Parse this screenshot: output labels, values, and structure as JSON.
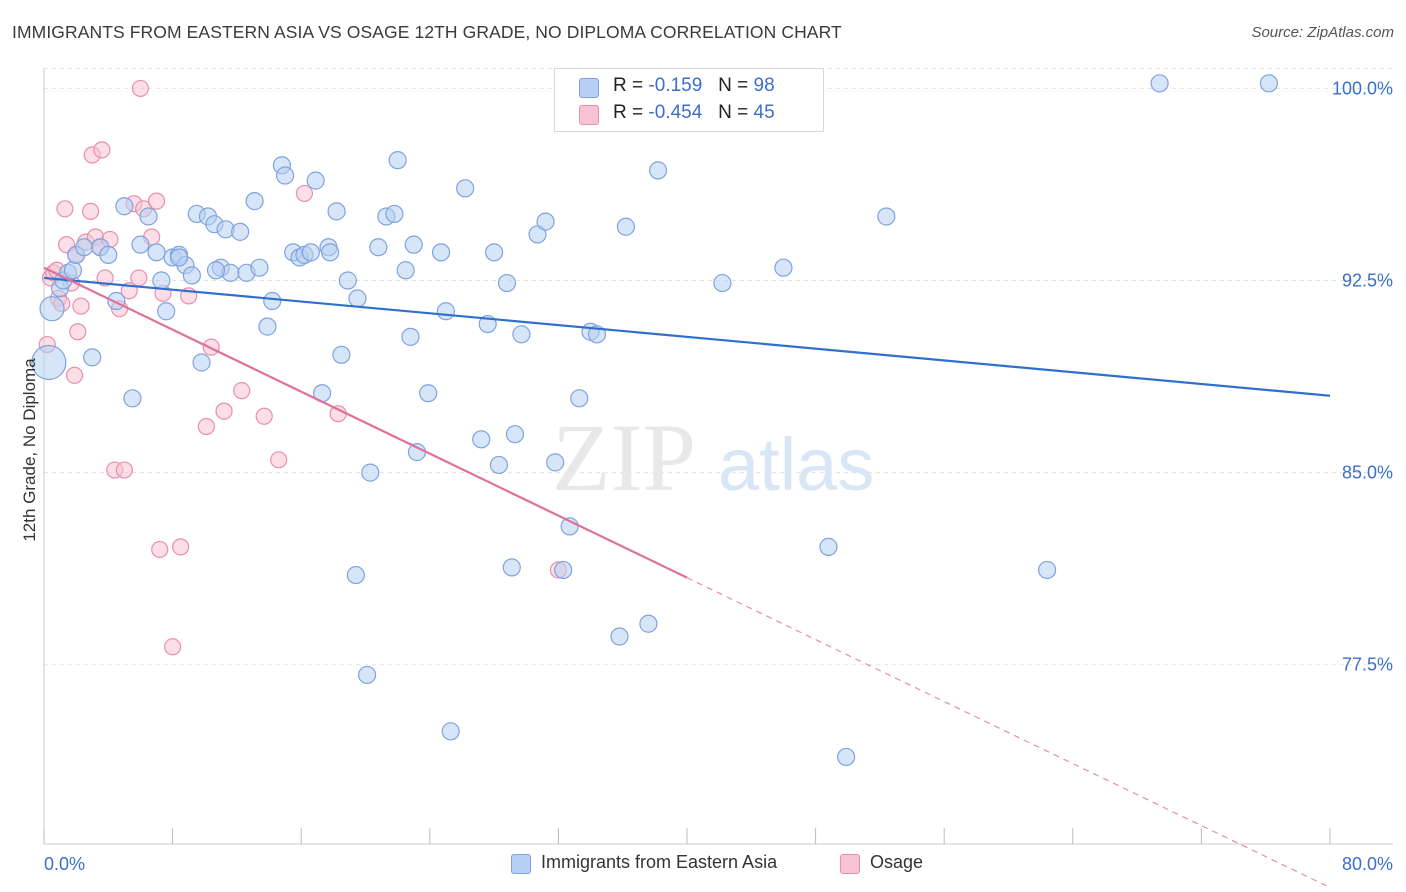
{
  "title": "IMMIGRANTS FROM EASTERN ASIA VS OSAGE 12TH GRADE, NO DIPLOMA CORRELATION CHART",
  "source": "Source: ZipAtlas.com",
  "watermark": {
    "zip": "ZIP",
    "atlas": "atlas"
  },
  "legend": {
    "blue": {
      "r_label": "R =",
      "r_value": "-0.159",
      "n_label": "N =",
      "n_value": "98"
    },
    "pink": {
      "r_label": "R =",
      "r_value": "-0.454",
      "n_label": "N =",
      "n_value": "45"
    }
  },
  "bottom_legend": {
    "blue": "Immigrants from Eastern Asia",
    "pink": "Osage"
  },
  "colors": {
    "blue_fill": "#b7cff3",
    "blue_stroke": "#7fa3dc",
    "blue_line": "#2f6fce",
    "pink_fill": "#f7c3d2",
    "pink_stroke": "#e98fae",
    "pink_line": "#e0709a",
    "tick_label": "#3b6fc9",
    "grid": "#e3e3e3"
  },
  "chart_data": {
    "type": "scatter",
    "title": "IMMIGRANTS FROM EASTERN ASIA VS OSAGE 12TH GRADE, NO DIPLOMA CORRELATION CHART",
    "xlabel": "",
    "ylabel": "12th Grade, No Diploma",
    "xlim": [
      0,
      80
    ],
    "ylim": [
      70.5,
      101.5
    ],
    "x_tick_labels": [
      "0.0%",
      "80.0%"
    ],
    "y_ticks": [
      77.5,
      85.0,
      92.5,
      100.0
    ],
    "y_tick_labels": [
      "77.5%",
      "85.0%",
      "92.5%",
      "100.0%"
    ],
    "grid": true,
    "legend_position": "top-center",
    "series": [
      {
        "name": "Immigrants from Eastern Asia",
        "trend": {
          "x": [
            0,
            80
          ],
          "y": [
            92.6,
            88.0
          ]
        },
        "points": [
          [
            0.3,
            89.3
          ],
          [
            0.5,
            91.4
          ],
          [
            1.0,
            92.2
          ],
          [
            1.2,
            92.5
          ],
          [
            1.5,
            92.8
          ],
          [
            1.8,
            92.9
          ],
          [
            2.0,
            93.5
          ],
          [
            2.5,
            93.8
          ],
          [
            3.0,
            89.5
          ],
          [
            3.5,
            93.8
          ],
          [
            4.0,
            93.5
          ],
          [
            4.5,
            91.7
          ],
          [
            5.0,
            95.4
          ],
          [
            5.5,
            87.9
          ],
          [
            6.0,
            93.9
          ],
          [
            6.5,
            95.0
          ],
          [
            7.0,
            93.6
          ],
          [
            7.3,
            92.5
          ],
          [
            7.6,
            91.3
          ],
          [
            8.0,
            93.4
          ],
          [
            8.4,
            93.5
          ],
          [
            8.8,
            93.1
          ],
          [
            9.2,
            92.7
          ],
          [
            9.5,
            95.1
          ],
          [
            9.8,
            89.3
          ],
          [
            10.2,
            95.0
          ],
          [
            10.6,
            94.7
          ],
          [
            11.0,
            93.0
          ],
          [
            11.3,
            94.5
          ],
          [
            11.6,
            92.8
          ],
          [
            12.2,
            94.4
          ],
          [
            12.6,
            92.8
          ],
          [
            13.1,
            95.6
          ],
          [
            13.4,
            93.0
          ],
          [
            13.9,
            90.7
          ],
          [
            14.2,
            91.7
          ],
          [
            14.8,
            97.0
          ],
          [
            15.0,
            96.6
          ],
          [
            15.5,
            93.6
          ],
          [
            15.9,
            93.4
          ],
          [
            16.2,
            93.5
          ],
          [
            16.6,
            93.6
          ],
          [
            16.9,
            96.4
          ],
          [
            17.3,
            88.1
          ],
          [
            17.7,
            93.8
          ],
          [
            18.2,
            95.2
          ],
          [
            18.5,
            89.6
          ],
          [
            18.9,
            92.5
          ],
          [
            19.5,
            91.8
          ],
          [
            20.3,
            85.0
          ],
          [
            20.8,
            93.8
          ],
          [
            21.3,
            95.0
          ],
          [
            21.8,
            95.1
          ],
          [
            22.0,
            97.2
          ],
          [
            22.5,
            92.9
          ],
          [
            22.8,
            90.3
          ],
          [
            23.0,
            93.9
          ],
          [
            23.2,
            85.8
          ],
          [
            23.9,
            88.1
          ],
          [
            24.7,
            93.6
          ],
          [
            25.0,
            91.3
          ],
          [
            26.2,
            96.1
          ],
          [
            27.2,
            86.3
          ],
          [
            27.6,
            90.8
          ],
          [
            28.0,
            93.6
          ],
          [
            28.3,
            85.3
          ],
          [
            28.8,
            92.4
          ],
          [
            29.3,
            86.5
          ],
          [
            29.7,
            90.4
          ],
          [
            29.1,
            81.3
          ],
          [
            30.7,
            94.3
          ],
          [
            31.2,
            94.8
          ],
          [
            31.8,
            85.4
          ],
          [
            32.3,
            81.2
          ],
          [
            32.7,
            82.9
          ],
          [
            33.3,
            87.9
          ],
          [
            34.0,
            90.5
          ],
          [
            34.4,
            90.4
          ],
          [
            35.8,
            78.6
          ],
          [
            36.2,
            94.6
          ],
          [
            37.6,
            79.1
          ],
          [
            38.2,
            96.8
          ],
          [
            37.0,
            100.2
          ],
          [
            42.2,
            92.4
          ],
          [
            43.8,
            100.2
          ],
          [
            46.0,
            93.0
          ],
          [
            48.8,
            82.1
          ],
          [
            49.9,
            73.9
          ],
          [
            52.4,
            95.0
          ],
          [
            62.4,
            81.2
          ],
          [
            69.4,
            100.2
          ],
          [
            76.2,
            100.2
          ],
          [
            19.4,
            81.0
          ],
          [
            20.1,
            77.1
          ],
          [
            25.3,
            74.9
          ],
          [
            17.8,
            93.6
          ],
          [
            8.4,
            93.4
          ],
          [
            10.7,
            92.9
          ]
        ]
      },
      {
        "name": "Osage",
        "trend": {
          "x": [
            0,
            40
          ],
          "y": [
            93.0,
            80.9
          ]
        },
        "trend_extension": {
          "x": [
            40,
            80
          ],
          "y": [
            80.9,
            68.8
          ]
        },
        "points": [
          [
            0.2,
            90.0
          ],
          [
            0.4,
            92.6
          ],
          [
            0.6,
            92.8
          ],
          [
            0.9,
            91.8
          ],
          [
            1.1,
            91.6
          ],
          [
            1.4,
            93.9
          ],
          [
            1.7,
            92.4
          ],
          [
            2.0,
            93.5
          ],
          [
            2.3,
            91.5
          ],
          [
            2.6,
            94.0
          ],
          [
            2.9,
            95.2
          ],
          [
            3.2,
            94.2
          ],
          [
            3.5,
            93.8
          ],
          [
            3.8,
            92.6
          ],
          [
            4.1,
            94.1
          ],
          [
            4.4,
            85.1
          ],
          [
            4.7,
            91.4
          ],
          [
            5.0,
            85.1
          ],
          [
            5.3,
            92.1
          ],
          [
            5.6,
            95.5
          ],
          [
            5.9,
            92.6
          ],
          [
            6.2,
            95.3
          ],
          [
            6.7,
            94.2
          ],
          [
            7.0,
            95.6
          ],
          [
            7.2,
            82.0
          ],
          [
            7.4,
            92.0
          ],
          [
            8.0,
            78.2
          ],
          [
            8.5,
            82.1
          ],
          [
            9.0,
            91.9
          ],
          [
            10.1,
            86.8
          ],
          [
            10.4,
            89.9
          ],
          [
            11.2,
            87.4
          ],
          [
            12.3,
            88.2
          ],
          [
            13.7,
            87.2
          ],
          [
            14.6,
            85.5
          ],
          [
            16.2,
            95.9
          ],
          [
            18.3,
            87.3
          ],
          [
            32.0,
            81.2
          ],
          [
            0.8,
            92.9
          ],
          [
            1.9,
            88.8
          ],
          [
            3.0,
            97.4
          ],
          [
            3.6,
            97.6
          ],
          [
            1.3,
            95.3
          ],
          [
            6.0,
            100.0
          ],
          [
            2.1,
            90.5
          ]
        ]
      }
    ]
  }
}
